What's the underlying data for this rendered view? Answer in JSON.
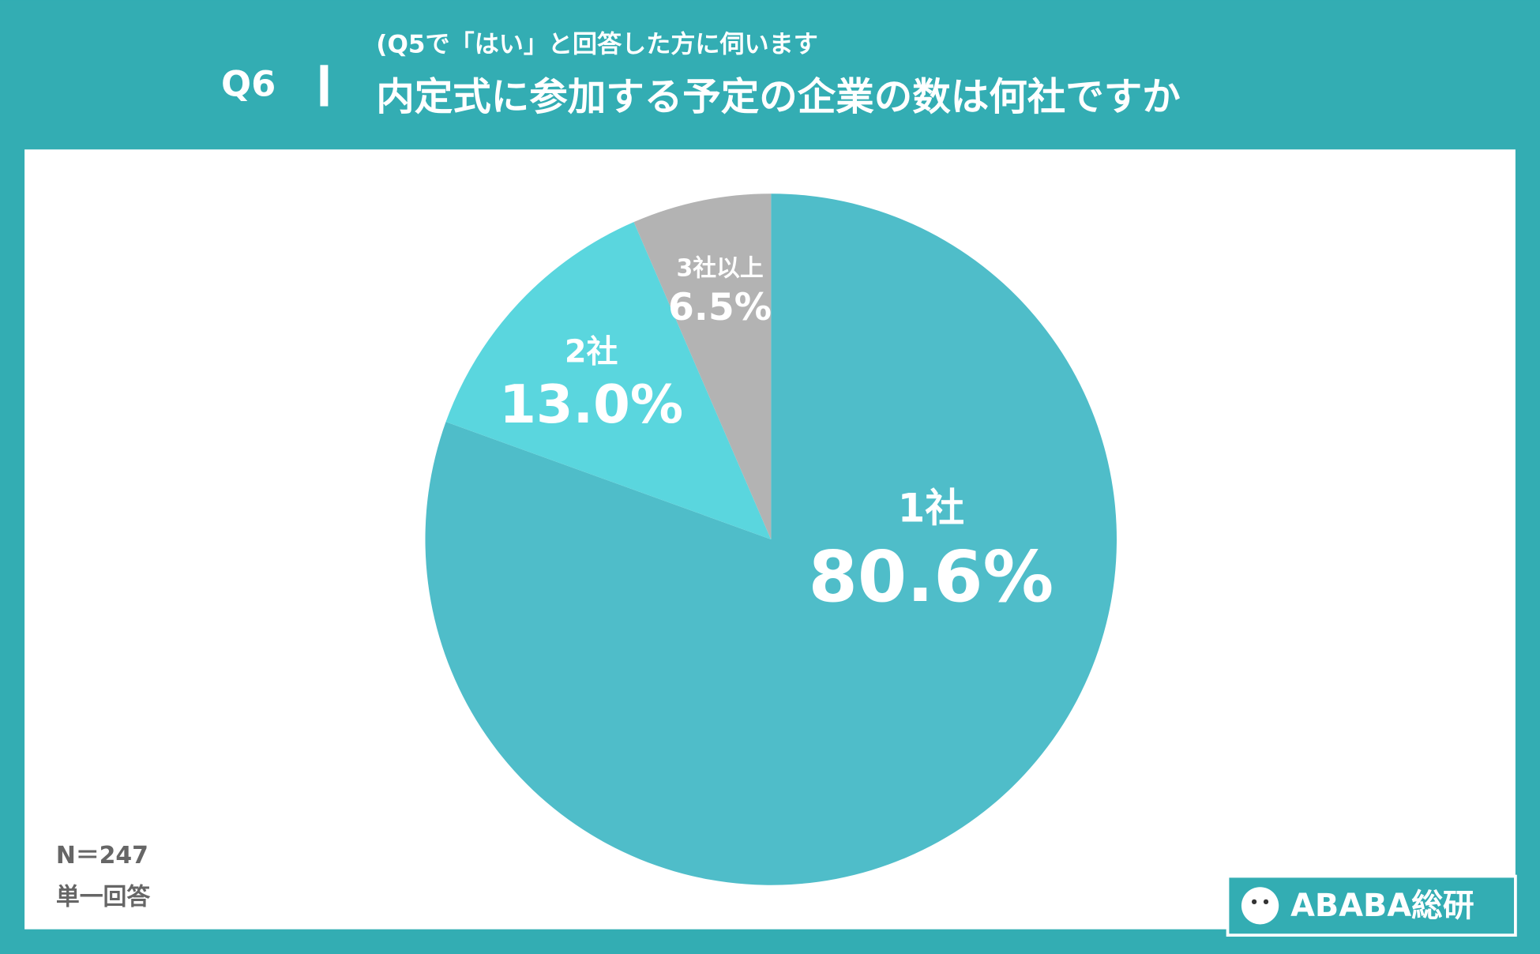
{
  "question_number": "Q6",
  "chart_data": {
    "type": "pie",
    "subtitle": "(Q5で「はい」と回答した方に伺います",
    "title": "内定式に参加する予定の企業の数は何社ですか",
    "categories": [
      "1社",
      "2社",
      "3社以上"
    ],
    "values": [
      80.6,
      13.0,
      6.5
    ],
    "value_labels": [
      "80.6%",
      "13.0%",
      "6.5%"
    ],
    "colors": [
      "#4fbdc9",
      "#5ad6de",
      "#b3b3b3"
    ]
  },
  "notes": [
    "N＝247",
    "単一回答"
  ],
  "brand": "ABABA総研"
}
